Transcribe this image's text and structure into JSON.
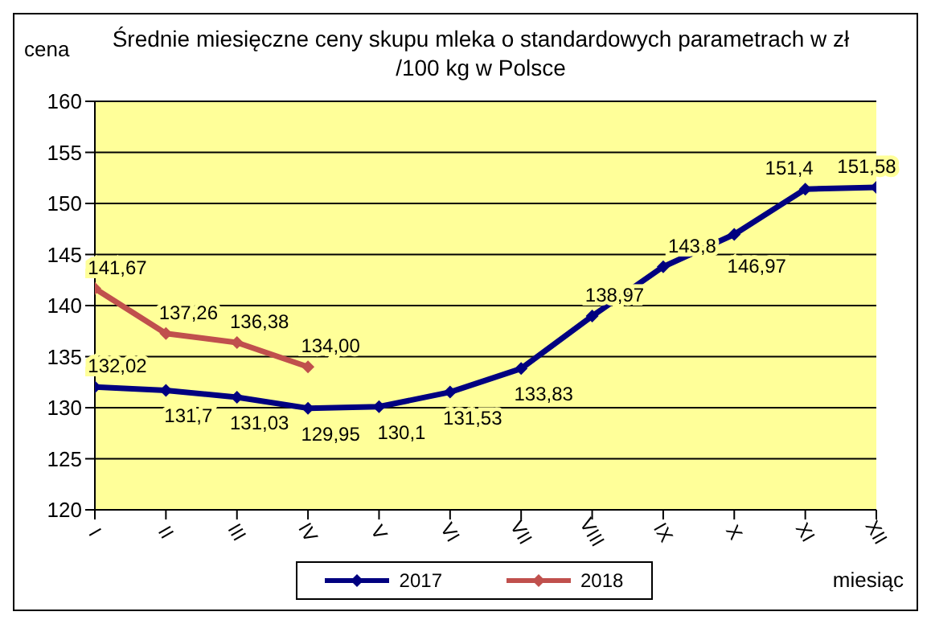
{
  "chart_data": {
    "type": "line",
    "title": "Średnie miesięczne ceny skupu mleka o standardowych parametrach w zł /100 kg w Polsce",
    "xlabel": "miesiąc",
    "ylabel": "cena",
    "categories": [
      "I",
      "II",
      "III",
      "IV",
      "V",
      "VI",
      "VII",
      "VIII",
      "IX",
      "X",
      "XI",
      "XII"
    ],
    "series": [
      {
        "name": "2017",
        "color": "#000080",
        "values": [
          132.02,
          131.7,
          131.03,
          129.95,
          130.1,
          131.53,
          133.83,
          138.97,
          143.8,
          146.97,
          151.4,
          151.58
        ],
        "value_labels": [
          "132,02",
          "131,7",
          "131,03",
          "129,95",
          "130,1",
          "131,53",
          "133,83",
          "138,97",
          "143,8",
          "146,97",
          "151,4",
          "151,58"
        ]
      },
      {
        "name": "2018",
        "color": "#c0504d",
        "values": [
          141.67,
          137.26,
          136.38,
          134.0,
          null,
          null,
          null,
          null,
          null,
          null,
          null,
          null
        ],
        "value_labels": [
          "141,67",
          "137,26",
          "136,38",
          "134,00",
          null,
          null,
          null,
          null,
          null,
          null,
          null,
          null
        ]
      }
    ],
    "ylim": [
      120,
      160
    ],
    "yticks": [
      120,
      125,
      130,
      135,
      140,
      145,
      150,
      155,
      160
    ],
    "grid": "y",
    "legend": "bottom",
    "marker": "diamond",
    "line_style": "solid"
  }
}
